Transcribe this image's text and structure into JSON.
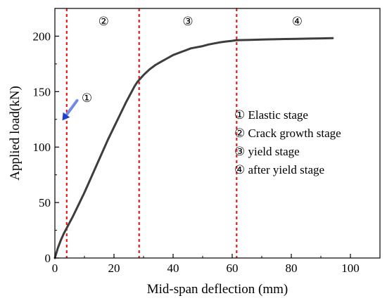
{
  "chart_data": {
    "type": "line",
    "xlabel": "Mid-span deflection (mm)",
    "ylabel": "Applied load(kN)",
    "xlim": [
      0,
      110
    ],
    "ylim": [
      0,
      225
    ],
    "xticks": [
      0,
      20,
      40,
      60,
      80,
      100
    ],
    "yticks": [
      0,
      50,
      100,
      150,
      200
    ],
    "grid": false,
    "series": [
      {
        "color": "#3d3d3d",
        "x": [
          0,
          1,
          2,
          3,
          4,
          6,
          8,
          10,
          12,
          14,
          16,
          18,
          20,
          22,
          24,
          26,
          27,
          28,
          29,
          30,
          32,
          34,
          36,
          38,
          40,
          42,
          44,
          46,
          48,
          50,
          52,
          54,
          56,
          58,
          60,
          61,
          62,
          66,
          70,
          74,
          78,
          82,
          86,
          90,
          94
        ],
        "y": [
          0,
          9,
          16,
          22,
          27,
          37,
          48,
          59,
          71,
          83,
          95,
          107,
          118,
          129,
          140,
          150,
          155,
          159,
          162,
          165,
          170,
          174,
          177,
          180,
          183,
          185,
          187,
          189,
          190,
          191,
          192.5,
          193.5,
          194.5,
          195.2,
          195.8,
          196.2,
          196.4,
          196.7,
          197,
          197.2,
          197.4,
          197.6,
          197.8,
          198,
          198.2
        ]
      }
    ],
    "stage_boundaries": [
      4,
      28.5,
      61.5
    ],
    "stage_boundary_color": "#e02020",
    "stage_labels": [
      {
        "text": "②",
        "x": 16.5
      },
      {
        "text": "③",
        "x": 45
      },
      {
        "text": "④",
        "x": 82
      }
    ],
    "annotation": {
      "text": "①",
      "arrow_from": [
        7.5,
        142
      ],
      "arrow_to": [
        2.5,
        124
      ],
      "arrow_color": "#1f3fd6"
    },
    "legend_position": "center-right",
    "legend": [
      "①  Elastic stage",
      "②  Crack growth stage",
      "③  yield stage",
      "④  after yield stage"
    ]
  }
}
